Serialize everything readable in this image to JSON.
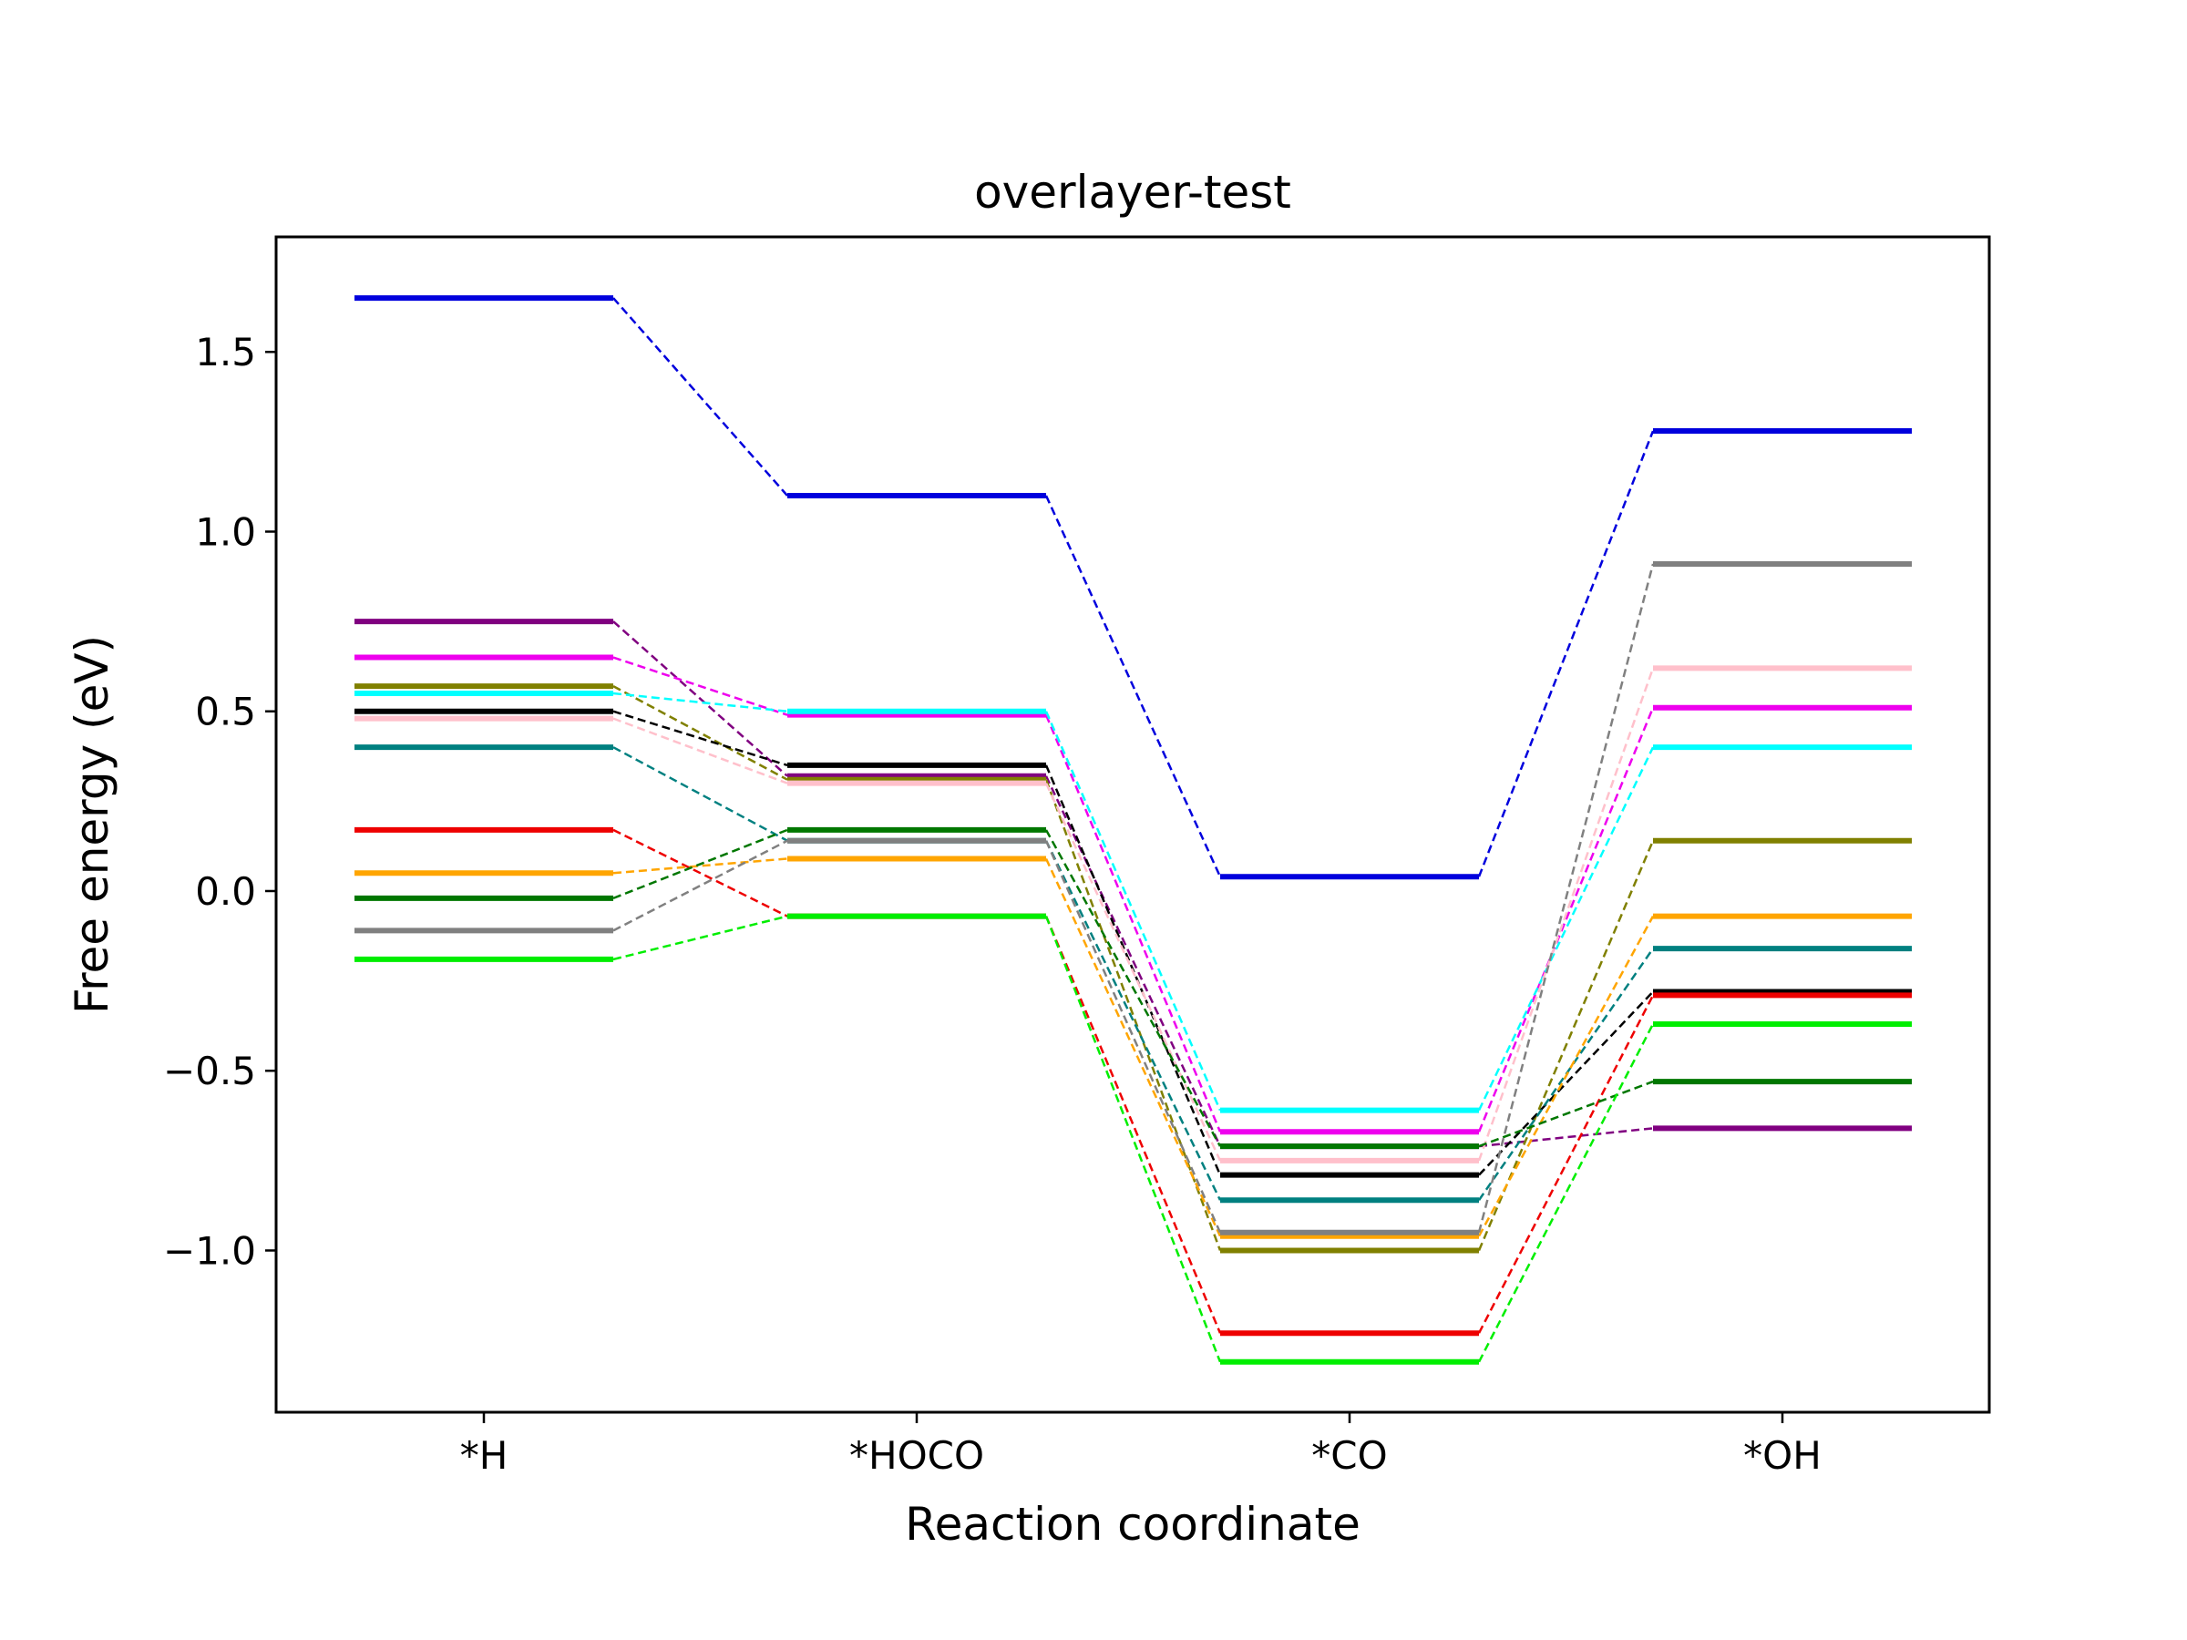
{
  "chart_data": {
    "type": "line",
    "title": "overlayer-test",
    "xlabel": "Reaction coordinate",
    "ylabel": "Free energy (eV)",
    "categories": [
      "*H",
      "*HOCO",
      "*CO",
      "*OH"
    ],
    "ylim": [
      -1.45,
      1.82
    ],
    "yticks": [
      1.5,
      1.0,
      0.5,
      0.0,
      -0.5,
      -1.0
    ],
    "ytick_labels": [
      "1.5",
      "1.0",
      "0.5",
      "0.0",
      "−0.5",
      "−1.0"
    ],
    "grid": false,
    "series": [
      {
        "color": "#0000dd",
        "values": [
          1.65,
          1.1,
          0.04,
          1.28
        ]
      },
      {
        "color": "#800080",
        "values": [
          0.75,
          0.32,
          -0.71,
          -0.66
        ]
      },
      {
        "color": "#ee00ee",
        "values": [
          0.65,
          0.49,
          -0.67,
          0.51
        ]
      },
      {
        "color": "#808000",
        "values": [
          0.57,
          0.31,
          -1.0,
          0.14
        ]
      },
      {
        "color": "#00ffff",
        "values": [
          0.55,
          0.5,
          -0.61,
          0.4
        ]
      },
      {
        "color": "#000000",
        "values": [
          0.5,
          0.35,
          -0.79,
          -0.28
        ]
      },
      {
        "color": "#ffc0cb",
        "values": [
          0.48,
          0.3,
          -0.75,
          0.62
        ]
      },
      {
        "color": "#008080",
        "values": [
          0.4,
          0.14,
          -0.86,
          -0.16
        ]
      },
      {
        "color": "#ee0000",
        "values": [
          0.17,
          -0.07,
          -1.23,
          -0.29
        ]
      },
      {
        "color": "#ffa500",
        "values": [
          0.05,
          0.09,
          -0.96,
          -0.07
        ]
      },
      {
        "color": "#007700",
        "values": [
          -0.02,
          0.17,
          -0.71,
          -0.53
        ]
      },
      {
        "color": "#808080",
        "values": [
          -0.11,
          0.14,
          -0.95,
          0.91
        ]
      },
      {
        "color": "#00ee00",
        "values": [
          -0.19,
          -0.07,
          -1.31,
          -0.37
        ]
      }
    ]
  }
}
